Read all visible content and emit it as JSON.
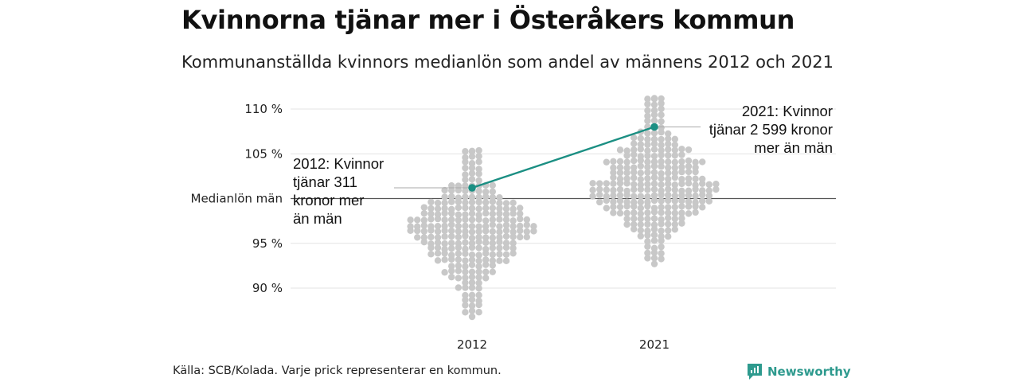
{
  "title": "Kvinnorna tjänar mer i Österåkers kommun",
  "subtitle": "Kommunanställda kvinnors medianlön som andel av männens 2012 och 2021",
  "source": "Källa: SCB/Kolada. Varje prick representerar en kommun.",
  "brand": "Newsworthy",
  "colors": {
    "dots": "#c8c8c8",
    "highlight": "#1b8f83",
    "grid": "#e3e3e3",
    "baseline": "#555555"
  },
  "chart_data": {
    "type": "scatter",
    "title": "Kvinnorna tjänar mer i Österåkers kommun",
    "subtitle": "Kommunanställda kvinnors medianlön som andel av männens 2012 och 2021",
    "categories": [
      "2012",
      "2021"
    ],
    "ylim": [
      86,
      111
    ],
    "yticks": [
      {
        "value": 90,
        "label": "90 %"
      },
      {
        "value": 95,
        "label": "95 %"
      },
      {
        "value": 100,
        "label": "Medianlön män"
      },
      {
        "value": 105,
        "label": "105 %"
      },
      {
        "value": 110,
        "label": "110 %"
      }
    ],
    "grid": true,
    "distributions": [
      {
        "category": "2012",
        "min": 86.8,
        "max": 105.3,
        "median": 96.2,
        "peak": 96.5
      },
      {
        "category": "2021",
        "min": 92.7,
        "max": 111.2,
        "median": 100.6,
        "peak": 101.0
      }
    ],
    "highlight": {
      "name": "Österåker",
      "values": [
        {
          "category": "2012",
          "value": 101.2
        },
        {
          "category": "2021",
          "value": 108.0
        }
      ]
    },
    "annotations": [
      {
        "category": "2012",
        "lines": [
          "2012: Kvinnor",
          "tjänar 311",
          "kronor mer",
          "än män"
        ]
      },
      {
        "category": "2021",
        "lines": [
          "2021: Kvinnor",
          "tjänar 2 599 kronor",
          "mer än män"
        ]
      }
    ]
  }
}
